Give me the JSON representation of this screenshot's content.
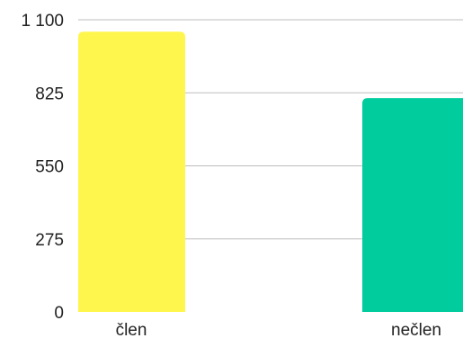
{
  "chart_data": {
    "type": "bar",
    "categories": [
      "člen",
      "nečlen"
    ],
    "values": [
      1055,
      805
    ],
    "ylim": [
      0,
      1100
    ],
    "yticks": [
      0,
      275,
      550,
      825,
      1100
    ],
    "ytick_labels": [
      "0",
      "275",
      "550",
      "825",
      "1 100"
    ],
    "colors": [
      "#FFF64D",
      "#00CC9E"
    ],
    "grid": true,
    "title": "",
    "xlabel": "",
    "ylabel": ""
  }
}
